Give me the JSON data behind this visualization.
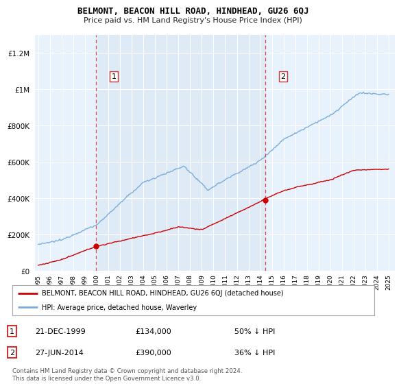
{
  "title": "BELMONT, BEACON HILL ROAD, HINDHEAD, GU26 6QJ",
  "subtitle": "Price paid vs. HM Land Registry's House Price Index (HPI)",
  "legend_label_red": "BELMONT, BEACON HILL ROAD, HINDHEAD, GU26 6QJ (detached house)",
  "legend_label_blue": "HPI: Average price, detached house, Waverley",
  "purchase1_date": "21-DEC-1999",
  "purchase1_price": 134000,
  "purchase1_label": "50% ↓ HPI",
  "purchase2_date": "27-JUN-2014",
  "purchase2_price": 390000,
  "purchase2_label": "36% ↓ HPI",
  "footer": "Contains HM Land Registry data © Crown copyright and database right 2024.\nThis data is licensed under the Open Government Licence v3.0.",
  "ylim": [
    0,
    1300000
  ],
  "yticks": [
    0,
    200000,
    400000,
    600000,
    800000,
    1000000,
    1200000
  ],
  "background_color": "#dce8f5",
  "shade_color": "#dce8f5",
  "outer_bg_color": "#e8f2fc",
  "red_color": "#cc0000",
  "blue_color": "#7aaddb",
  "dashed_color": "#dd4444",
  "purchase1_x": 1999.958,
  "purchase2_x": 2014.458,
  "xlim_left": 1994.7,
  "xlim_right": 2025.5
}
